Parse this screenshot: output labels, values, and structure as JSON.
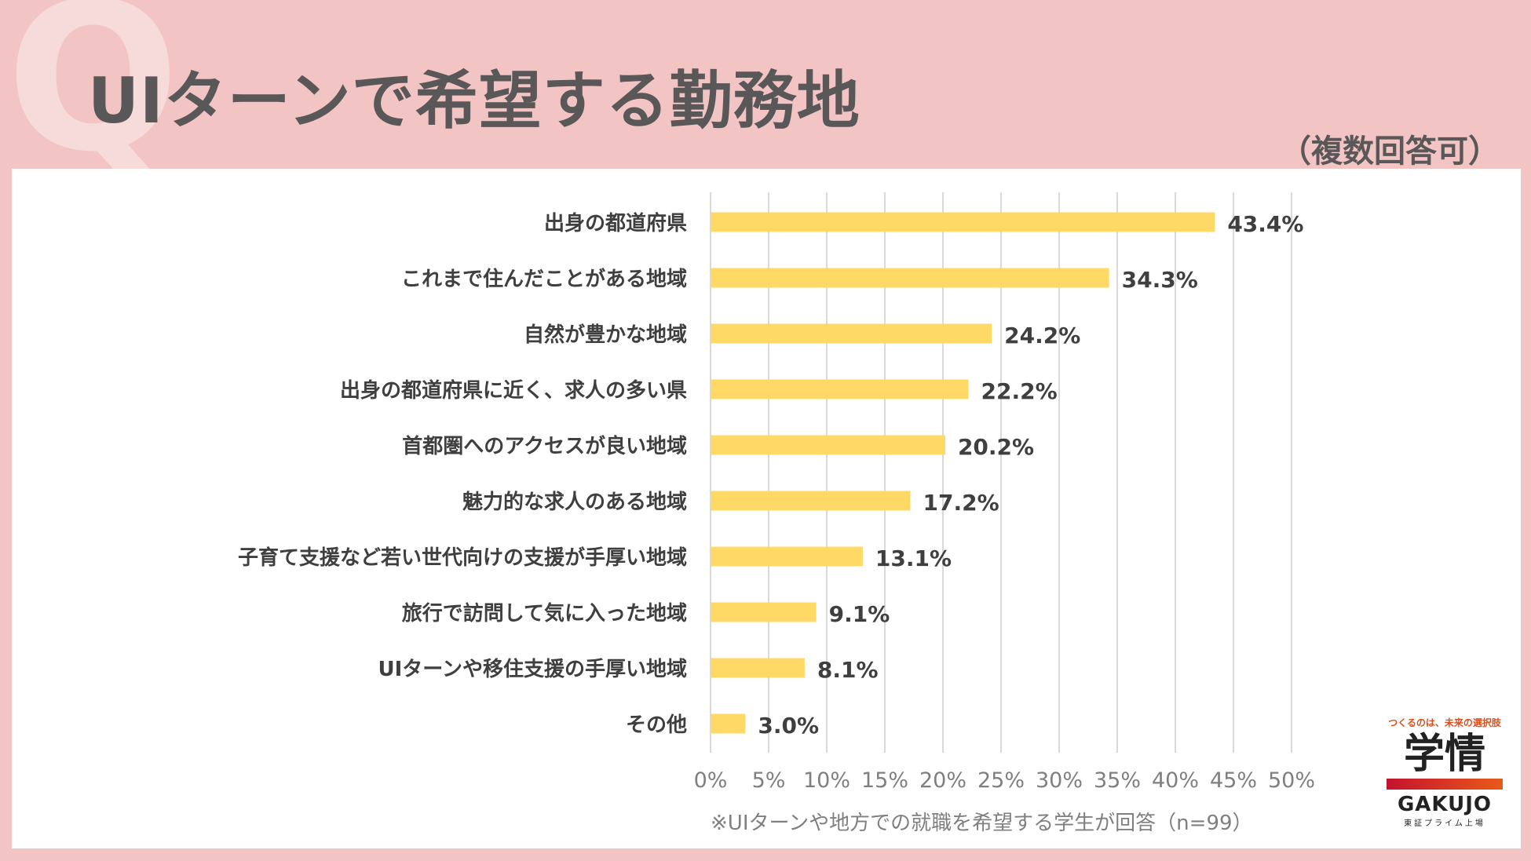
{
  "header": {
    "q_mark": "Q",
    "title": "UIターンで希望する勤務地",
    "subtitle": "（複数回答可）"
  },
  "footnote": "※UIターンや地方での就職を希望する学生が回答（n=99）",
  "logo": {
    "tagline": "つくるのは、未来の選択肢",
    "mark": "学情",
    "name": "GAKUJO",
    "listing": "東証プライム上場",
    "colors": {
      "bar_start": "#c4122f",
      "bar_end": "#e85a1a",
      "tagline": "#d9501e"
    }
  },
  "chart_data": {
    "type": "bar",
    "orientation": "horizontal",
    "categories": [
      "出身の都道府県",
      "これまで住んだことがある地域",
      "自然が豊かな地域",
      "出身の都道府県に近く、求人の多い県",
      "首都圏へのアクセスが良い地域",
      "魅力的な求人のある地域",
      "子育て支援など若い世代向けの支援が手厚い地域",
      "旅行で訪問して気に入った地域",
      "UIターンや移住支援の手厚い地域",
      "その他"
    ],
    "values": [
      43.4,
      34.3,
      24.2,
      22.2,
      20.2,
      17.2,
      13.1,
      9.1,
      8.1,
      3.0
    ],
    "data_labels": [
      "43.4%",
      "34.3%",
      "24.2%",
      "22.2%",
      "20.2%",
      "17.2%",
      "13.1%",
      "9.1%",
      "8.1%",
      "3.0%"
    ],
    "xlim": [
      0,
      50
    ],
    "x_ticks": [
      0,
      5,
      10,
      15,
      20,
      25,
      30,
      35,
      40,
      45,
      50
    ],
    "x_tick_labels": [
      "0%",
      "5%",
      "10%",
      "15%",
      "20%",
      "25%",
      "30%",
      "35%",
      "40%",
      "45%",
      "50%"
    ],
    "grid": true,
    "bar_color": "#ffd966",
    "grid_color": "#d9d9d9"
  }
}
